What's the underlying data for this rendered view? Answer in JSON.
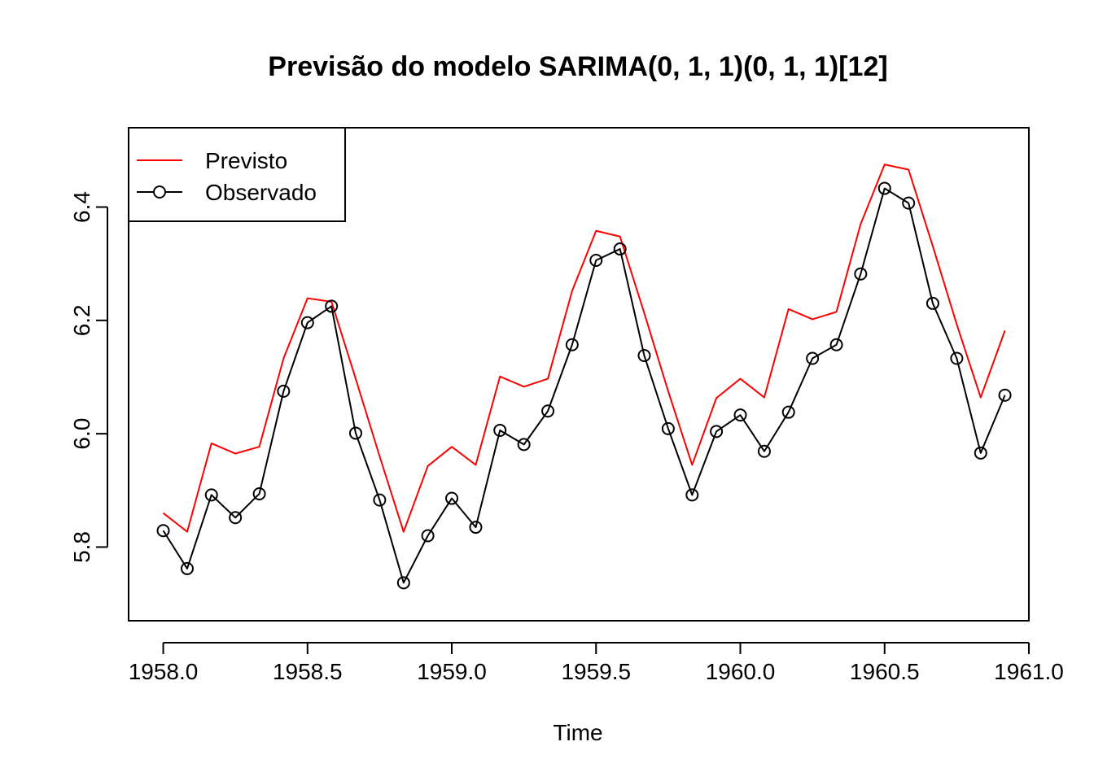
{
  "chart_data": {
    "type": "line",
    "title": "Previsão do modelo SARIMA(0, 1, 1)(0, 1, 1)[12]",
    "xlabel": "Time",
    "ylabel": "",
    "xlim": [
      1957.88,
      1961.0
    ],
    "ylim": [
      5.67,
      6.54
    ],
    "x_ticks": [
      1958.0,
      1958.5,
      1959.0,
      1959.5,
      1960.0,
      1960.5,
      1961.0
    ],
    "x_tick_labels": [
      "1958.0",
      "1958.5",
      "1959.0",
      "1959.5",
      "1960.0",
      "1960.5",
      "1961.0"
    ],
    "y_ticks": [
      5.8,
      6.0,
      6.2,
      6.4
    ],
    "y_tick_labels": [
      "5.8",
      "6.0",
      "6.2",
      "6.4"
    ],
    "legend": {
      "position": "top-left",
      "entries": [
        "Previsto",
        "Observado"
      ]
    },
    "series": [
      {
        "name": "Previsto",
        "color": "#ff0000",
        "marker": "none",
        "x": [
          1958.0,
          1958.083,
          1958.167,
          1958.25,
          1958.333,
          1958.417,
          1958.5,
          1958.583,
          1958.667,
          1958.75,
          1958.833,
          1958.917,
          1959.0,
          1959.083,
          1959.167,
          1959.25,
          1959.333,
          1959.417,
          1959.5,
          1959.583,
          1959.667,
          1959.75,
          1959.833,
          1959.917,
          1960.0,
          1960.083,
          1960.167,
          1960.25,
          1960.333,
          1960.417,
          1960.5,
          1960.583,
          1960.667,
          1960.75,
          1960.833,
          1960.917
        ],
        "values": [
          5.86,
          5.827,
          5.983,
          5.965,
          5.977,
          6.133,
          6.239,
          6.233,
          6.097,
          5.96,
          5.827,
          5.943,
          5.977,
          5.945,
          6.101,
          6.083,
          6.097,
          6.252,
          6.358,
          6.348,
          6.213,
          6.075,
          5.945,
          6.063,
          6.097,
          6.064,
          6.22,
          6.202,
          6.215,
          6.37,
          6.475,
          6.466,
          6.331,
          6.193,
          6.064,
          6.182
        ]
      },
      {
        "name": "Observado",
        "color": "#000000",
        "marker": "circle",
        "x": [
          1958.0,
          1958.083,
          1958.167,
          1958.25,
          1958.333,
          1958.417,
          1958.5,
          1958.583,
          1958.667,
          1958.75,
          1958.833,
          1958.917,
          1959.0,
          1959.083,
          1959.167,
          1959.25,
          1959.333,
          1959.417,
          1959.5,
          1959.583,
          1959.667,
          1959.75,
          1959.833,
          1959.917,
          1960.0,
          1960.083,
          1960.167,
          1960.25,
          1960.333,
          1960.417,
          1960.5,
          1960.583,
          1960.667,
          1960.75,
          1960.833,
          1960.917
        ],
        "values": [
          5.829,
          5.762,
          5.892,
          5.852,
          5.894,
          6.075,
          6.196,
          6.225,
          6.001,
          5.883,
          5.737,
          5.82,
          5.886,
          5.835,
          6.006,
          5.981,
          6.04,
          6.157,
          6.306,
          6.326,
          6.138,
          6.009,
          5.892,
          6.004,
          6.033,
          5.969,
          6.038,
          6.133,
          6.157,
          6.282,
          6.433,
          6.407,
          6.23,
          6.133,
          5.966,
          6.068
        ]
      }
    ]
  }
}
